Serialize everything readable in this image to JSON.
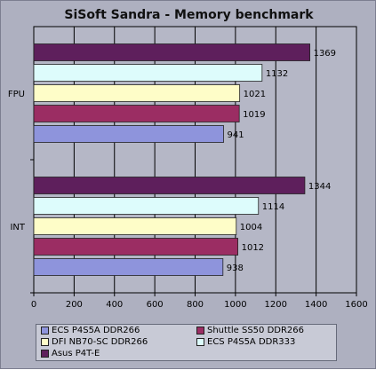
{
  "chart_data": {
    "type": "bar",
    "orientation": "horizontal",
    "title": "SiSoft Sandra - Memory benchmark",
    "categories": [
      "FPU",
      "INT"
    ],
    "series": [
      {
        "name": "ECS P4S5A DDR266",
        "color": "#8e94dc",
        "values": [
          941,
          938
        ]
      },
      {
        "name": "Shuttle SS50 DDR266",
        "color": "#9b2d63",
        "values": [
          1019,
          1012
        ]
      },
      {
        "name": "DFI NB70-SC DDR266",
        "color": "#fefdc8",
        "values": [
          1021,
          1004
        ]
      },
      {
        "name": "ECS P4S5A DDR333",
        "color": "#ddfcfc",
        "values": [
          1132,
          1114
        ]
      },
      {
        "name": "Asus P4T-E",
        "color": "#5e1f5c",
        "values": [
          1369,
          1344
        ]
      }
    ],
    "xlim": [
      0,
      1600
    ],
    "xticks": [
      0,
      200,
      400,
      600,
      800,
      1000,
      1200,
      1400,
      1600
    ],
    "grid": true,
    "legend_position": "bottom"
  }
}
